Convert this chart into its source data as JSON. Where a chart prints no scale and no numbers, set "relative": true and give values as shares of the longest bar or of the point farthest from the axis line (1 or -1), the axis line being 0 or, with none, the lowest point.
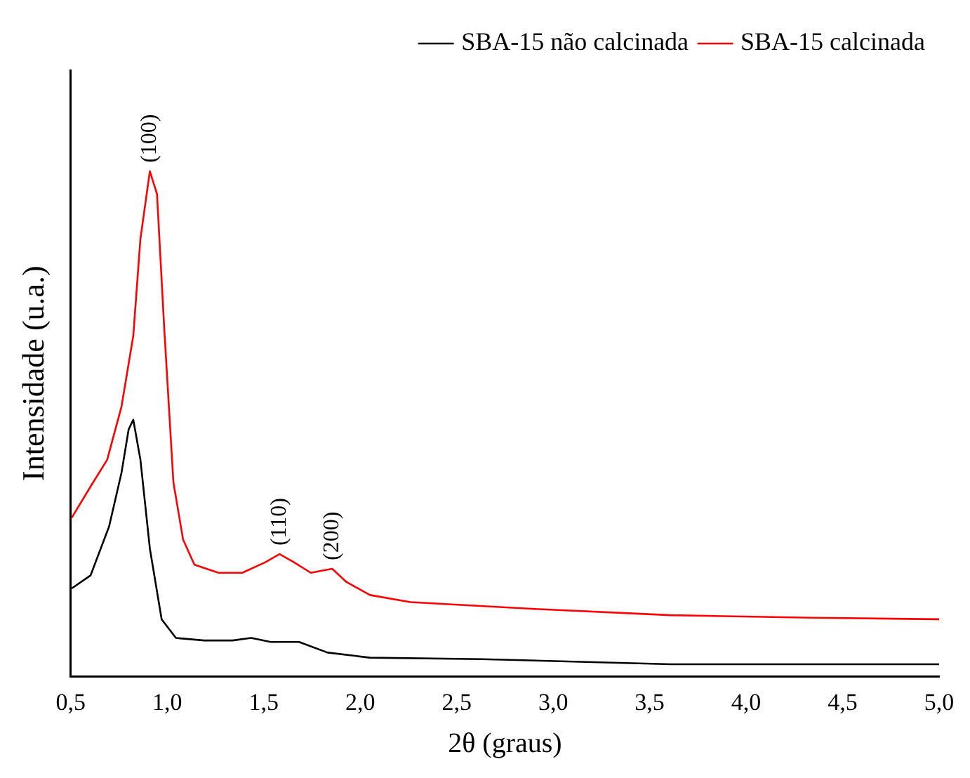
{
  "chart_data": {
    "type": "line",
    "xlabel": "2θ (graus)",
    "ylabel": "Intensidade (u.a.)",
    "relative": true,
    "xlim": [
      0.5,
      5.0
    ],
    "xticks": [
      {
        "value": 0.5,
        "label": "0,5"
      },
      {
        "value": 1.0,
        "label": "1,0"
      },
      {
        "value": 1.5,
        "label": "1,5"
      },
      {
        "value": 2.0,
        "label": "2,0"
      },
      {
        "value": 2.5,
        "label": "2,5"
      },
      {
        "value": 3.0,
        "label": "3,0"
      },
      {
        "value": 3.5,
        "label": "3,5"
      },
      {
        "value": 4.0,
        "label": "4,0"
      },
      {
        "value": 4.5,
        "label": "4,5"
      },
      {
        "value": 5.0,
        "label": "5,0"
      }
    ],
    "grid": false,
    "legend": "top right",
    "marker": "none",
    "line_style": "solid",
    "series": [
      {
        "name": "SBA-15 não calcinada",
        "color": "#000000",
        "x": [
          0.505,
          0.603,
          0.699,
          0.763,
          0.8,
          0.824,
          0.861,
          0.91,
          0.971,
          1.045,
          1.192,
          1.339,
          1.435,
          1.536,
          1.683,
          1.831,
          2.05,
          2.63,
          3.61,
          5.0
        ],
        "values": [
          0.174,
          0.2,
          0.297,
          0.403,
          0.489,
          0.508,
          0.429,
          0.253,
          0.113,
          0.076,
          0.071,
          0.071,
          0.076,
          0.068,
          0.068,
          0.047,
          0.037,
          0.034,
          0.024,
          0.024
        ]
      },
      {
        "name": "SBA-15 calcinada",
        "color": "#ff0000",
        "x": [
          0.505,
          0.603,
          0.689,
          0.763,
          0.824,
          0.861,
          0.91,
          0.947,
          0.984,
          1.032,
          1.082,
          1.141,
          1.266,
          1.389,
          1.509,
          1.582,
          1.656,
          1.744,
          1.855,
          1.928,
          2.05,
          2.26,
          2.87,
          3.61,
          4.34,
          5.0
        ],
        "values": [
          0.314,
          0.376,
          0.429,
          0.534,
          0.674,
          0.866,
          1.0,
          0.955,
          0.692,
          0.384,
          0.271,
          0.221,
          0.205,
          0.205,
          0.226,
          0.242,
          0.226,
          0.205,
          0.213,
          0.187,
          0.161,
          0.147,
          0.134,
          0.121,
          0.116,
          0.113
        ]
      }
    ],
    "annotations": [
      {
        "text": "(100)",
        "x": 0.91,
        "y": 1.0
      },
      {
        "text": "(110)",
        "x": 1.582,
        "y": 0.242
      },
      {
        "text": "(200)",
        "x": 1.855,
        "y": 0.213
      }
    ]
  }
}
